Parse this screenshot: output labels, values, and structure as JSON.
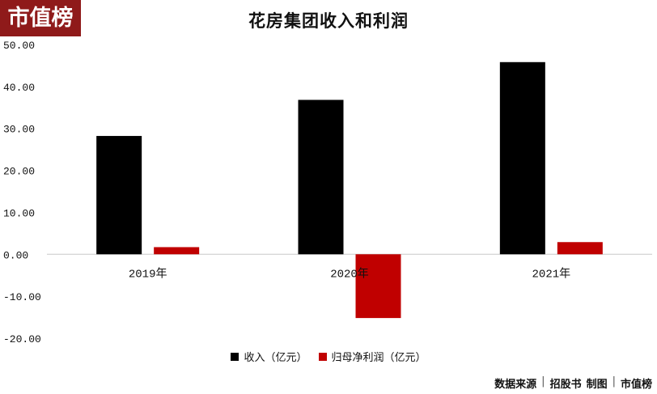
{
  "brand": {
    "logo_text": "市值榜",
    "color": "#8f1a1a"
  },
  "footer": {
    "source_label": "数据来源",
    "source": "招股书",
    "made_by_label": "制图",
    "made_by": "市值榜"
  },
  "chart_data": {
    "type": "bar",
    "title": "花房集团收入和利润",
    "categories": [
      "2019年",
      "2020年",
      "2021年"
    ],
    "series": [
      {
        "name": "收入（亿元）",
        "color": "#000000",
        "values": [
          28.2,
          36.8,
          45.8
        ]
      },
      {
        "name": "归母净利润（亿元）",
        "color": "#c00000",
        "values": [
          1.7,
          -15.2,
          2.9
        ]
      }
    ],
    "ylim": [
      -20,
      50
    ],
    "yticks": [
      "50.00",
      "40.00",
      "30.00",
      "20.00",
      "10.00",
      "0.00",
      "-10.00",
      "-20.00"
    ],
    "ytick_values": [
      50,
      40,
      30,
      20,
      10,
      0,
      -10,
      -20
    ],
    "grid": false,
    "legend_position": "bottom"
  }
}
